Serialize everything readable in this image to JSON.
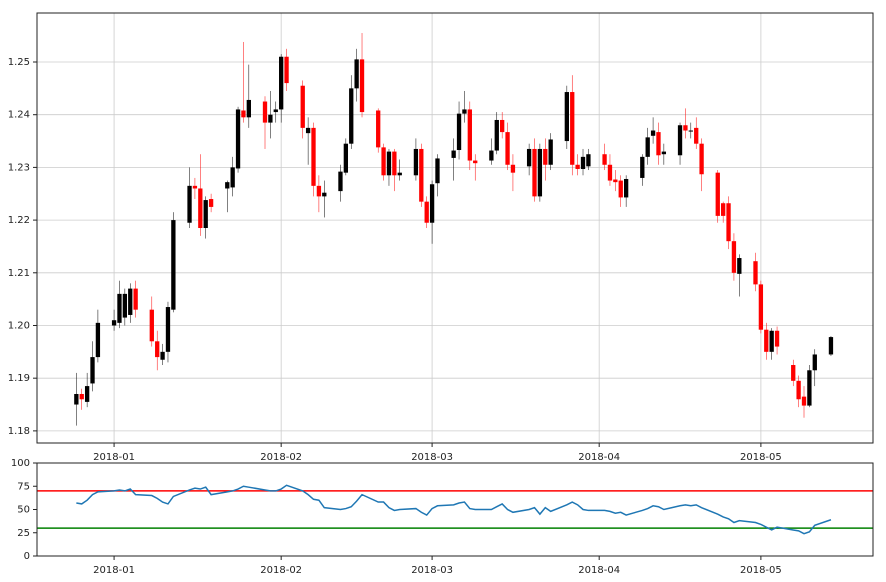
{
  "chart_data": [
    {
      "type": "candlestick",
      "x": [
        -7,
        -6,
        -5,
        -4,
        -3,
        0,
        1,
        2,
        3,
        4,
        7,
        8,
        9,
        10,
        11,
        14,
        15,
        16,
        17,
        18,
        21,
        22,
        23,
        24,
        25,
        28,
        29,
        30,
        31,
        32,
        35,
        36,
        37,
        38,
        39,
        42,
        43,
        44,
        45,
        46,
        49,
        50,
        51,
        52,
        53,
        56,
        57,
        58,
        59,
        60,
        63,
        64,
        65,
        66,
        67,
        70,
        71,
        72,
        73,
        74,
        77,
        78,
        79,
        80,
        81,
        84,
        85,
        86,
        87,
        88,
        91,
        92,
        93,
        94,
        95,
        98,
        99,
        100,
        101,
        102,
        105,
        106,
        107,
        108,
        109,
        112,
        113,
        114,
        115,
        116,
        119,
        120,
        121,
        122,
        123,
        126,
        127,
        128,
        129,
        130,
        133
      ],
      "open": [
        1.185,
        1.187,
        1.1855,
        1.189,
        1.194,
        1.2,
        1.2005,
        1.2015,
        1.202,
        1.207,
        1.203,
        1.197,
        1.1935,
        1.195,
        1.203,
        1.2195,
        1.2265,
        1.226,
        1.2185,
        1.224,
        1.226,
        1.2262,
        1.2298,
        1.2408,
        1.2395,
        1.2425,
        1.2385,
        1.2405,
        1.241,
        1.251,
        1.2455,
        1.2365,
        1.2375,
        1.2265,
        1.2245,
        1.2255,
        1.229,
        1.2345,
        1.245,
        1.2505,
        1.2408,
        1.2338,
        1.2285,
        1.233,
        1.2285,
        1.2285,
        1.2335,
        1.2235,
        1.2195,
        1.227,
        1.2318,
        1.2333,
        1.2402,
        1.241,
        1.2313,
        1.2313,
        1.2332,
        1.239,
        1.2367,
        1.2305,
        1.2302,
        1.2335,
        1.2245,
        1.2335,
        1.2305,
        1.235,
        1.2443,
        1.2305,
        1.2297,
        1.2302,
        1.2325,
        1.2305,
        1.2277,
        1.2275,
        1.2243,
        1.228,
        1.232,
        1.236,
        1.2367,
        1.2325,
        1.2323,
        1.238,
        1.2368,
        1.2375,
        1.2345,
        1.229,
        1.2232,
        1.2232,
        1.216,
        1.2098,
        1.2122,
        1.2078,
        1.1992,
        1.195,
        1.199,
        1.1925,
        1.1895,
        1.1865,
        1.1848,
        1.1915,
        1.1945
      ],
      "high": [
        1.191,
        1.188,
        1.191,
        1.197,
        1.203,
        1.203,
        1.2085,
        1.207,
        1.208,
        1.2085,
        1.2055,
        1.199,
        1.1965,
        1.2045,
        1.2215,
        1.23,
        1.228,
        1.2325,
        1.2245,
        1.225,
        1.2275,
        1.232,
        1.2415,
        1.2538,
        1.2495,
        1.2435,
        1.2445,
        1.2425,
        1.2515,
        1.2525,
        1.2465,
        1.2395,
        1.2385,
        1.2285,
        1.2275,
        1.2305,
        1.2355,
        1.2475,
        1.2525,
        1.2555,
        1.2412,
        1.2345,
        1.2335,
        1.2335,
        1.2315,
        1.2355,
        1.2345,
        1.2245,
        1.2275,
        1.2325,
        1.2355,
        1.2425,
        1.2445,
        1.2425,
        1.2325,
        1.2355,
        1.2405,
        1.2405,
        1.2385,
        1.2325,
        1.2345,
        1.2355,
        1.2345,
        1.2355,
        1.2365,
        1.2455,
        1.2475,
        1.2325,
        1.2335,
        1.2335,
        1.2345,
        1.2325,
        1.2295,
        1.2285,
        1.2285,
        1.2325,
        1.2375,
        1.2395,
        1.2385,
        1.2345,
        1.2385,
        1.2412,
        1.2385,
        1.2395,
        1.2355,
        1.2295,
        1.2235,
        1.2245,
        1.2175,
        1.2135,
        1.2138,
        1.2085,
        1.2005,
        1.1995,
        1.1998,
        1.1935,
        1.1905,
        1.1885,
        1.1925,
        1.1955,
        1.198
      ],
      "low": [
        1.181,
        1.184,
        1.1845,
        1.1875,
        1.193,
        1.199,
        1.1995,
        1.2,
        1.2005,
        1.2015,
        1.196,
        1.1915,
        1.1925,
        1.193,
        1.2025,
        1.2185,
        1.224,
        1.217,
        1.2165,
        1.2215,
        1.2215,
        1.2245,
        1.229,
        1.2385,
        1.2375,
        1.2335,
        1.2355,
        1.2385,
        1.2385,
        1.2445,
        1.2355,
        1.2305,
        1.2245,
        1.2215,
        1.2205,
        1.2235,
        1.2285,
        1.2335,
        1.2425,
        1.2395,
        1.2328,
        1.2275,
        1.2265,
        1.2255,
        1.2275,
        1.2275,
        1.2225,
        1.2185,
        1.2155,
        1.2245,
        1.2275,
        1.2315,
        1.2385,
        1.2295,
        1.2275,
        1.2305,
        1.2325,
        1.2355,
        1.2295,
        1.2255,
        1.2285,
        1.2235,
        1.2235,
        1.2275,
        1.2295,
        1.2335,
        1.2285,
        1.2285,
        1.2285,
        1.2295,
        1.2295,
        1.2265,
        1.2255,
        1.2225,
        1.2225,
        1.2265,
        1.2305,
        1.2345,
        1.2305,
        1.2305,
        1.2305,
        1.2355,
        1.2355,
        1.2335,
        1.2255,
        1.2195,
        1.2195,
        1.2145,
        1.2085,
        1.2055,
        1.2065,
        1.1985,
        1.1935,
        1.1935,
        1.1945,
        1.1885,
        1.1845,
        1.1825,
        1.1845,
        1.1885,
        1.1942
      ],
      "close": [
        1.187,
        1.186,
        1.1885,
        1.194,
        1.2005,
        1.201,
        1.206,
        1.206,
        1.207,
        1.203,
        1.197,
        1.194,
        1.195,
        1.2035,
        1.22,
        1.2265,
        1.226,
        1.2185,
        1.2238,
        1.2225,
        1.2272,
        1.23,
        1.241,
        1.2395,
        1.2428,
        1.2385,
        1.24,
        1.241,
        1.251,
        1.246,
        1.2375,
        1.2375,
        1.2265,
        1.2245,
        1.2252,
        1.2292,
        1.2345,
        1.245,
        1.2505,
        1.2405,
        1.2338,
        1.2285,
        1.233,
        1.2285,
        1.229,
        1.2335,
        1.2235,
        1.2195,
        1.2268,
        1.2317,
        1.2332,
        1.2402,
        1.241,
        1.2313,
        1.2308,
        1.2332,
        1.239,
        1.2367,
        1.2305,
        1.229,
        1.2335,
        1.2245,
        1.2335,
        1.2305,
        1.2353,
        1.2443,
        1.2305,
        1.2297,
        1.232,
        1.2325,
        1.2305,
        1.2275,
        1.2272,
        1.2243,
        1.2278,
        1.232,
        1.2357,
        1.237,
        1.2323,
        1.233,
        1.238,
        1.237,
        1.237,
        1.2345,
        1.2287,
        1.2208,
        1.2208,
        1.216,
        1.21,
        1.2128,
        1.2078,
        1.1992,
        1.195,
        1.199,
        1.196,
        1.1895,
        1.186,
        1.1848,
        1.1915,
        1.1945,
        1.1978
      ],
      "colorup": "#000000",
      "colordown": "#ff0000",
      "xlim": [
        -14.3,
        140.8
      ],
      "xticks": [
        {
          "value": 0,
          "label": "2018-01"
        },
        {
          "value": 31,
          "label": "2018-02"
        },
        {
          "value": 59,
          "label": "2018-03"
        },
        {
          "value": 90,
          "label": "2018-04"
        },
        {
          "value": 120,
          "label": "2018-05"
        }
      ],
      "ylim": [
        1.1777,
        1.2593
      ],
      "yticks": [
        1.18,
        1.19,
        {
          "value": 1.2,
          "label": "1.20"
        },
        1.21,
        1.22,
        1.23,
        1.24,
        1.25
      ],
      "grid": true
    },
    {
      "type": "line",
      "x": [
        -7,
        -6,
        -5,
        -4,
        -3,
        0,
        1,
        2,
        3,
        4,
        7,
        8,
        9,
        10,
        11,
        14,
        15,
        16,
        17,
        18,
        21,
        22,
        23,
        24,
        25,
        28,
        29,
        30,
        31,
        32,
        35,
        36,
        37,
        38,
        39,
        42,
        43,
        44,
        45,
        46,
        49,
        50,
        51,
        52,
        53,
        56,
        57,
        58,
        59,
        60,
        63,
        64,
        65,
        66,
        67,
        70,
        71,
        72,
        73,
        74,
        77,
        78,
        79,
        80,
        81,
        84,
        85,
        86,
        87,
        88,
        91,
        92,
        93,
        94,
        95,
        98,
        99,
        100,
        101,
        102,
        105,
        106,
        107,
        108,
        109,
        112,
        113,
        114,
        115,
        116,
        119,
        120,
        121,
        122,
        123,
        126,
        127,
        128,
        129,
        130,
        133
      ],
      "series": [
        {
          "color": "#1f77b4",
          "values": [
            57,
            56,
            60,
            66,
            69,
            70,
            71,
            70,
            72,
            66,
            65,
            62,
            58,
            56,
            64,
            71,
            73,
            72,
            74,
            66,
            69,
            70,
            72,
            75,
            74,
            71,
            70,
            70,
            72,
            76,
            70,
            66,
            61,
            60,
            52,
            50,
            51,
            53,
            59,
            66,
            58,
            58,
            52,
            49,
            50,
            51,
            47,
            44,
            51,
            54,
            55,
            57,
            58,
            51,
            50,
            50,
            53,
            56,
            50,
            47,
            50,
            52,
            45,
            52,
            48,
            55,
            58,
            55,
            50,
            49,
            49,
            48,
            46,
            47,
            44,
            49,
            51,
            54,
            53,
            50,
            54,
            55,
            54,
            55,
            52,
            45,
            42,
            40,
            36,
            38,
            36,
            34,
            31,
            28,
            31,
            28,
            27,
            24,
            26,
            33,
            39
          ]
        }
      ],
      "hlines": [
        {
          "value": 70,
          "color": "#ff0000"
        },
        {
          "value": 30,
          "color": "#008000"
        }
      ],
      "xlim": [
        -14.3,
        140.8
      ],
      "xticks": [
        {
          "value": 0,
          "label": "2018-01"
        },
        {
          "value": 31,
          "label": "2018-02"
        },
        {
          "value": 59,
          "label": "2018-03"
        },
        {
          "value": 90,
          "label": "2018-04"
        },
        {
          "value": 120,
          "label": "2018-05"
        }
      ],
      "ylim": [
        0,
        100
      ],
      "yticks": [
        0,
        25,
        50,
        75,
        100
      ],
      "grid": false
    }
  ]
}
